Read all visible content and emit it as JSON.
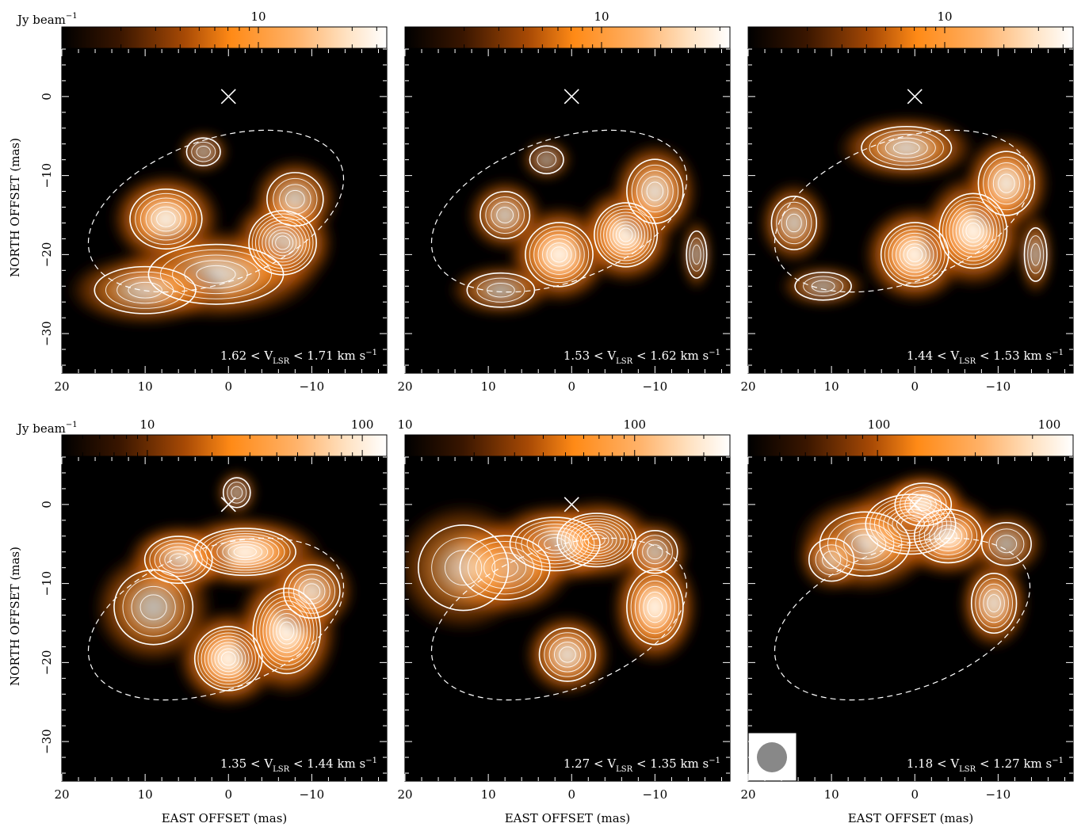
{
  "colorbar_unit": "Jy beam",
  "colorbar_unit_exp": "−1",
  "axis_labels": {
    "x": "EAST OFFSET (mas)",
    "y": "NORTH OFFSET (mas)"
  },
  "colors": {
    "background": "#000000",
    "emission_low": "#c25a08",
    "emission_mid": "#ff8c1a",
    "emission_peak": "#ffffff",
    "contour": "#ffffff",
    "beam": "#888888"
  },
  "panels": [
    {
      "id": "p1",
      "velocity": {
        "low": "1.62",
        "high": "1.71"
      },
      "colorbar_ticks": [
        {
          "label": "10",
          "value": 10
        }
      ],
      "colorbar_scale": {
        "min": 1,
        "max": 45,
        "scale": "log"
      },
      "sources": [
        {
          "name": "blob-a",
          "x": 7.5,
          "y": -15.5,
          "peak": 0.62,
          "sx": 3.2,
          "sy": 2.8
        },
        {
          "name": "blob-b",
          "x": -6.5,
          "y": -18.5,
          "peak": 1.0,
          "sx": 3.0,
          "sy": 3.0
        },
        {
          "name": "blob-c",
          "x": 1.5,
          "y": -22.5,
          "peak": 0.52,
          "sx": 6.0,
          "sy": 2.8
        },
        {
          "name": "blob-d",
          "x": 10.0,
          "y": -24.5,
          "peak": 0.4,
          "sx": 4.5,
          "sy": 2.2
        },
        {
          "name": "blob-e",
          "x": 3.0,
          "y": -7.0,
          "peak": 0.3,
          "sx": 1.5,
          "sy": 1.3
        },
        {
          "name": "blob-f",
          "x": -8.0,
          "y": -13.0,
          "peak": 0.45,
          "sx": 2.5,
          "sy": 2.5
        }
      ]
    },
    {
      "id": "p2",
      "velocity": {
        "low": "1.53",
        "high": "1.62"
      },
      "colorbar_ticks": [
        {
          "label": "10",
          "value": 10
        }
      ],
      "colorbar_scale": {
        "min": 1,
        "max": 45,
        "scale": "log"
      },
      "sources": [
        {
          "name": "blob-a",
          "x": 1.5,
          "y": -20.0,
          "peak": 0.82,
          "sx": 3.0,
          "sy": 3.0
        },
        {
          "name": "blob-b",
          "x": -6.5,
          "y": -17.5,
          "peak": 1.0,
          "sx": 2.8,
          "sy": 3.0
        },
        {
          "name": "blob-c",
          "x": -10.0,
          "y": -12.0,
          "peak": 0.55,
          "sx": 2.5,
          "sy": 3.0
        },
        {
          "name": "blob-d",
          "x": 8.0,
          "y": -15.0,
          "peak": 0.45,
          "sx": 2.2,
          "sy": 2.2
        },
        {
          "name": "blob-e",
          "x": 8.5,
          "y": -24.5,
          "peak": 0.35,
          "sx": 3.0,
          "sy": 1.6
        },
        {
          "name": "blob-f",
          "x": 3.0,
          "y": -8.0,
          "peak": 0.25,
          "sx": 1.5,
          "sy": 1.3
        },
        {
          "name": "blob-g",
          "x": -15.0,
          "y": -20.0,
          "peak": 0.3,
          "sx": 0.9,
          "sy": 2.2
        }
      ]
    },
    {
      "id": "p3",
      "velocity": {
        "low": "1.44",
        "high": "1.53"
      },
      "colorbar_ticks": [
        {
          "label": "10",
          "value": 10
        }
      ],
      "colorbar_scale": {
        "min": 1,
        "max": 45,
        "scale": "log"
      },
      "sources": [
        {
          "name": "blob-a",
          "x": 0.0,
          "y": -20.0,
          "peak": 0.92,
          "sx": 3.0,
          "sy": 3.0
        },
        {
          "name": "blob-b",
          "x": -7.0,
          "y": -17.0,
          "peak": 1.0,
          "sx": 3.0,
          "sy": 3.5
        },
        {
          "name": "blob-c",
          "x": -11.0,
          "y": -11.0,
          "peak": 0.6,
          "sx": 2.5,
          "sy": 3.0
        },
        {
          "name": "blob-d",
          "x": 1.0,
          "y": -6.5,
          "peak": 0.5,
          "sx": 4.0,
          "sy": 2.0
        },
        {
          "name": "blob-e",
          "x": 14.5,
          "y": -16.0,
          "peak": 0.45,
          "sx": 2.0,
          "sy": 2.5
        },
        {
          "name": "blob-f",
          "x": 11.0,
          "y": -24.0,
          "peak": 0.3,
          "sx": 2.5,
          "sy": 1.3
        },
        {
          "name": "blob-g",
          "x": -14.5,
          "y": -20.0,
          "peak": 0.35,
          "sx": 1.0,
          "sy": 2.5
        }
      ]
    },
    {
      "id": "p4",
      "velocity": {
        "low": "1.35",
        "high": "1.44"
      },
      "colorbar_ticks": [
        {
          "label": "10",
          "value": 10
        },
        {
          "label": "100",
          "value": 100
        }
      ],
      "colorbar_scale": {
        "min": 4,
        "max": 130,
        "scale": "log"
      },
      "sources": [
        {
          "name": "blob-a",
          "x": 0.0,
          "y": -19.5,
          "peak": 1.0,
          "sx": 3.0,
          "sy": 3.0
        },
        {
          "name": "blob-b",
          "x": -7.0,
          "y": -16.0,
          "peak": 0.95,
          "sx": 3.0,
          "sy": 4.0
        },
        {
          "name": "blob-c",
          "x": -2.0,
          "y": -6.0,
          "peak": 0.85,
          "sx": 4.5,
          "sy": 2.2
        },
        {
          "name": "blob-d",
          "x": 6.0,
          "y": -7.0,
          "peak": 0.7,
          "sx": 3.0,
          "sy": 2.2
        },
        {
          "name": "blob-e",
          "x": 9.0,
          "y": -13.0,
          "peak": 0.4,
          "sx": 3.5,
          "sy": 3.5
        },
        {
          "name": "blob-f",
          "x": -10.0,
          "y": -11.0,
          "peak": 0.5,
          "sx": 2.5,
          "sy": 2.5
        },
        {
          "name": "blob-g",
          "x": -1.0,
          "y": 1.5,
          "peak": 0.3,
          "sx": 1.2,
          "sy": 1.4
        }
      ]
    },
    {
      "id": "p5",
      "velocity": {
        "low": "1.27",
        "high": "1.35"
      },
      "colorbar_ticks": [
        {
          "label": "10",
          "value": 10
        },
        {
          "label": "100",
          "value": 100
        }
      ],
      "colorbar_scale": {
        "min": 10,
        "max": 260,
        "scale": "log"
      },
      "sources": [
        {
          "name": "blob-a",
          "x": -3.0,
          "y": -4.5,
          "peak": 1.0,
          "sx": 3.5,
          "sy": 2.5
        },
        {
          "name": "blob-b",
          "x": 2.0,
          "y": -5.0,
          "peak": 0.8,
          "sx": 4.0,
          "sy": 2.5
        },
        {
          "name": "blob-c",
          "x": 8.0,
          "y": -8.0,
          "peak": 0.6,
          "sx": 4.0,
          "sy": 3.0
        },
        {
          "name": "blob-d",
          "x": -10.0,
          "y": -13.0,
          "peak": 0.65,
          "sx": 2.5,
          "sy": 3.5
        },
        {
          "name": "blob-e",
          "x": 0.5,
          "y": -19.0,
          "peak": 0.55,
          "sx": 2.5,
          "sy": 2.5
        },
        {
          "name": "blob-f",
          "x": -10.0,
          "y": -6.0,
          "peak": 0.4,
          "sx": 2.0,
          "sy": 2.0
        },
        {
          "name": "blob-g",
          "x": 13.0,
          "y": -8.0,
          "peak": 0.3,
          "sx": 4.0,
          "sy": 4.0
        }
      ]
    },
    {
      "id": "p6",
      "velocity": {
        "low": "1.18",
        "high": "1.27"
      },
      "colorbar_ticks": [
        {
          "label": "100",
          "value": 100
        },
        {
          "label": "100",
          "value": 100
        }
      ],
      "colorbar_scale": {
        "min": 40,
        "max": 400,
        "scale": "log"
      },
      "sources": [
        {
          "name": "blob-a",
          "x": 0.5,
          "y": -2.5,
          "peak": 1.0,
          "sx": 4.0,
          "sy": 2.8
        },
        {
          "name": "blob-b",
          "x": -4.0,
          "y": -4.0,
          "peak": 0.7,
          "sx": 3.0,
          "sy": 2.5
        },
        {
          "name": "blob-c",
          "x": 6.0,
          "y": -5.0,
          "peak": 0.5,
          "sx": 4.0,
          "sy": 3.0
        },
        {
          "name": "blob-d",
          "x": -9.5,
          "y": -12.5,
          "peak": 0.55,
          "sx": 2.0,
          "sy": 2.8
        },
        {
          "name": "blob-e",
          "x": -11.0,
          "y": -5.0,
          "peak": 0.35,
          "sx": 2.2,
          "sy": 2.0
        },
        {
          "name": "blob-f",
          "x": 10.0,
          "y": -7.0,
          "peak": 0.3,
          "sx": 2.0,
          "sy": 2.0
        },
        {
          "name": "blob-g",
          "x": -1.0,
          "y": 0.0,
          "peak": 0.6,
          "sx": 2.5,
          "sy": 2.0
        }
      ],
      "beam": true
    }
  ],
  "x_axis": {
    "ticks": [
      20,
      10,
      0,
      -10
    ],
    "range": [
      20,
      -19
    ]
  },
  "y_axis": {
    "ticks": [
      0,
      -10,
      -20,
      -30
    ],
    "range": [
      6,
      -35
    ]
  },
  "ellipse": {
    "cx": 1.5,
    "cy": -14.5,
    "rx": 16.0,
    "ry": 9.0,
    "angle_deg": 20
  },
  "marker": {
    "x": 0,
    "y": 0,
    "symbol": "×"
  }
}
